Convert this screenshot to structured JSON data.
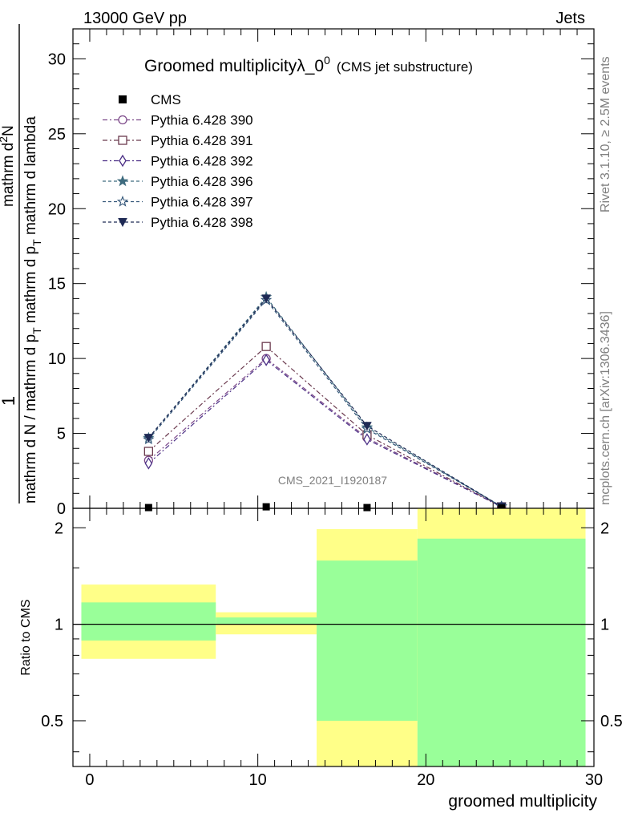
{
  "header": {
    "left": "13000 GeV pp",
    "right": "Jets"
  },
  "side_text": {
    "top": "Rivet 3.1.10, ≥ 2.5M events",
    "bottom": "mcplots.cern.ch [arXiv:1306.3436]"
  },
  "watermark": "CMS_2021_I1920187",
  "colors": {
    "yellow": "#ffff88",
    "green": "#99ff99",
    "data": "#000000"
  },
  "chart_data": [
    {
      "type": "line",
      "title_main": "Groomed multiplicityλ_0",
      "title_sup": "0",
      "title_note": "(CMS jet substructure)",
      "ylabel_num": "1",
      "ylabel_den": "mathrm d N / mathrm d p",
      "ylabel_den_sub": "T",
      "ylabel_den_tail": "mathrm d lambda",
      "ylabel_num2": "mathrm d",
      "ylabel_num2_sup": "2",
      "ylabel_num2_tail": "N",
      "ylabel_den2": "mathrm d p",
      "ylabel_den2_sub": "T",
      "ylabel_den2_tail": " mathrm d lambda",
      "xlim": [
        -1,
        30
      ],
      "ylim": [
        0,
        32
      ],
      "yticks": [
        0,
        5,
        10,
        15,
        20,
        25,
        30
      ],
      "ytick_labels": [
        "0",
        "5",
        "10",
        "15",
        "20",
        "25",
        "30"
      ],
      "legend_position": "top-left",
      "data_points": {
        "name": "CMS",
        "x": [
          3.5,
          10.5,
          16.5,
          24.5
        ],
        "y": [
          0.05,
          0.1,
          0.05,
          0.02
        ]
      },
      "series": [
        {
          "name": "Pythia 6.428 390",
          "color": "#7d4a8a",
          "dash": "6,3,2,3",
          "marker": "circle",
          "x": [
            3.5,
            10.5,
            16.5,
            24.5
          ],
          "y": [
            3.2,
            10.0,
            4.7,
            0.1
          ]
        },
        {
          "name": "Pythia 6.428 391",
          "color": "#6b3a4e",
          "dash": "6,3,2,3",
          "marker": "square",
          "x": [
            3.5,
            10.5,
            16.5,
            24.5
          ],
          "y": [
            3.8,
            10.8,
            4.9,
            0.1
          ]
        },
        {
          "name": "Pythia 6.428 392",
          "color": "#4b2f86",
          "dash": "6,3,2,3",
          "marker": "diamond",
          "x": [
            3.5,
            10.5,
            16.5,
            24.5
          ],
          "y": [
            3.0,
            9.9,
            4.6,
            0.1
          ]
        },
        {
          "name": "Pythia 6.428 396",
          "color": "#3f6c7f",
          "dash": "4,3",
          "marker": "star-filled",
          "x": [
            3.5,
            10.5,
            16.5,
            24.5
          ],
          "y": [
            4.7,
            14.1,
            5.4,
            0.12
          ]
        },
        {
          "name": "Pythia 6.428 397",
          "color": "#35587a",
          "dash": "4,3",
          "marker": "star-open",
          "x": [
            3.5,
            10.5,
            16.5,
            24.5
          ],
          "y": [
            4.6,
            13.9,
            5.3,
            0.12
          ]
        },
        {
          "name": "Pythia 6.428 398",
          "color": "#1f2a55",
          "dash": "4,3",
          "marker": "triangle-down",
          "x": [
            3.5,
            10.5,
            16.5,
            24.5
          ],
          "y": [
            4.7,
            14.0,
            5.5,
            0.12
          ]
        }
      ]
    },
    {
      "type": "area",
      "ylabel": "Ratio to CMS",
      "xlabel": "groomed multiplicity",
      "xlim": [
        -1,
        30
      ],
      "ylim": [
        0.36,
        2.3
      ],
      "log_y": true,
      "xticks": [
        0,
        10,
        20,
        30
      ],
      "xtick_labels": [
        "0",
        "10",
        "20",
        "30"
      ],
      "yticks": [
        0.5,
        1,
        2
      ],
      "ytick_labels": [
        "0.5",
        "1",
        "2"
      ],
      "reference_line": 1,
      "bins": [
        {
          "lo": -0.5,
          "hi": 7.5,
          "yellow": [
            0.78,
            1.33
          ],
          "green": [
            0.89,
            1.17
          ]
        },
        {
          "lo": 7.5,
          "hi": 13.5,
          "yellow": [
            0.93,
            1.09
          ],
          "green": [
            1.0,
            1.05
          ]
        },
        {
          "lo": 13.5,
          "hi": 19.5,
          "yellow": [
            0.36,
            1.98
          ],
          "green": [
            0.5,
            1.58
          ]
        },
        {
          "lo": 19.5,
          "hi": 29.5,
          "yellow": [
            0.36,
            2.3
          ],
          "green": [
            0.36,
            1.85
          ]
        }
      ]
    }
  ]
}
